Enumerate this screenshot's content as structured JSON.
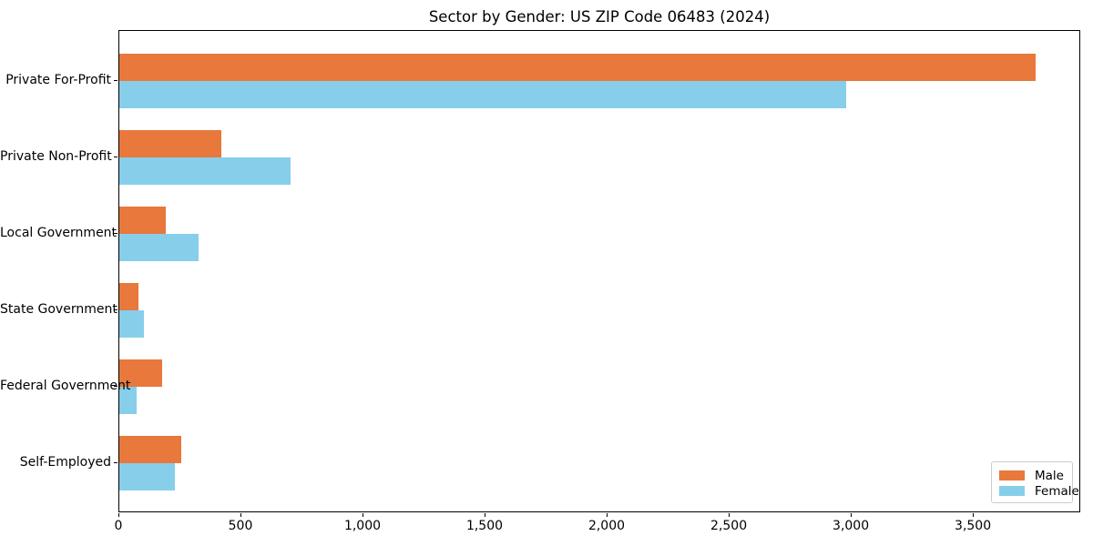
{
  "title": "Sector by Gender: US ZIP Code 06483 (2024)",
  "chart_data": {
    "type": "bar",
    "orientation": "horizontal",
    "title": "Sector by Gender: US ZIP Code 06483 (2024)",
    "categories": [
      "Private For-Profit",
      "Private Non-Profit",
      "Local Government",
      "State Government",
      "Federal Government",
      "Self-Employed"
    ],
    "series": [
      {
        "name": "Male",
        "color": "#e8783c",
        "values": [
          3754,
          418,
          190,
          78,
          175,
          254
        ]
      },
      {
        "name": "Female",
        "color": "#87ceeb",
        "values": [
          2978,
          701,
          325,
          100,
          71,
          228
        ]
      }
    ],
    "xlabel": "",
    "ylabel": "",
    "xlim": [
      0,
      3940
    ],
    "xticks": [
      0,
      500,
      1000,
      1500,
      2000,
      2500,
      3000,
      3500
    ],
    "xtick_labels": [
      "0",
      "500",
      "1,000",
      "1,500",
      "2,000",
      "2,500",
      "3,000",
      "3,500"
    ],
    "grid": false,
    "legend": {
      "position": "lower right",
      "entries": [
        "Male",
        "Female"
      ]
    }
  }
}
